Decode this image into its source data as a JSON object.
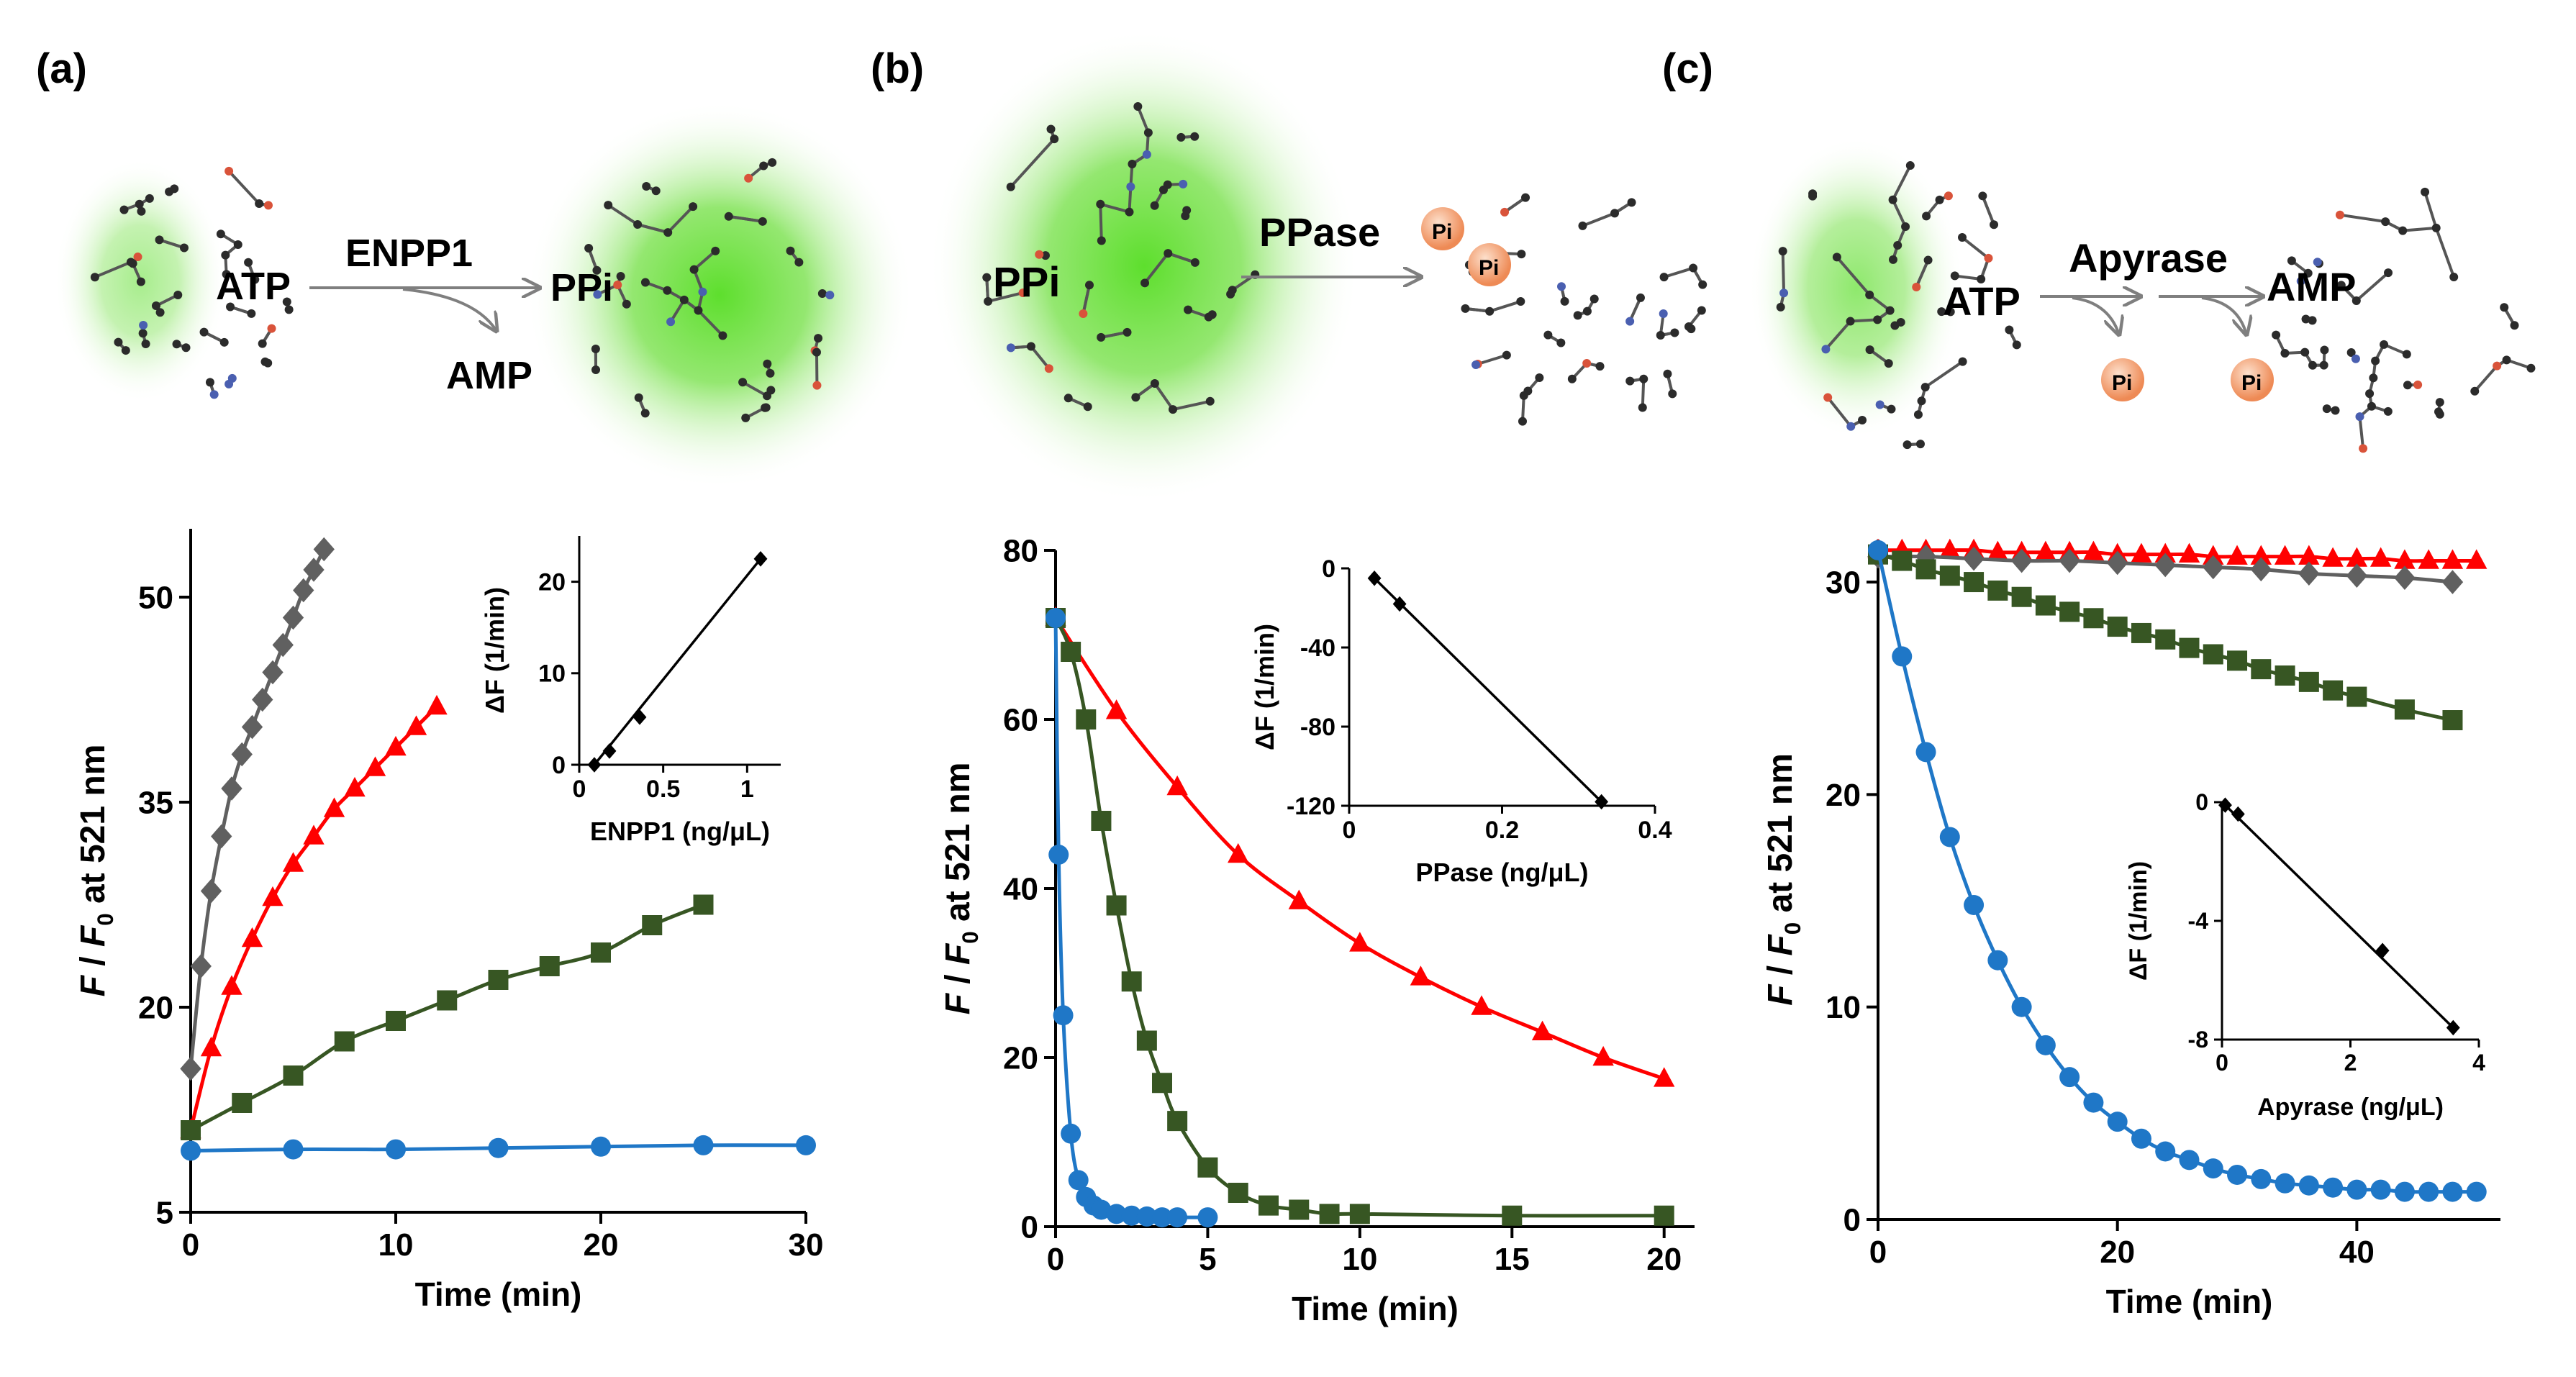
{
  "panels": [
    {
      "id": "a",
      "label": "(a)"
    },
    {
      "id": "b",
      "label": "(b)"
    },
    {
      "id": "c",
      "label": "(c)"
    }
  ],
  "schemes": {
    "a": {
      "substrate": "ATP",
      "enzyme": "ENPP1",
      "byproduct": "AMP",
      "product": "PPi"
    },
    "b": {
      "substrate": "PPi",
      "enzyme": "PPase",
      "byproduct": "Pi"
    },
    "c": {
      "substrate": "ATP",
      "enzyme": "Apyrase",
      "product": "AMP",
      "byproduct": "Pi"
    }
  },
  "colors": {
    "grey": "#606060",
    "red": "#ff0000",
    "green": "#375623",
    "blue": "#1f77c7",
    "glow": "#44cc11",
    "pi_ball": "#f4a070"
  },
  "chart_data": [
    {
      "id": "a-main",
      "type": "scatter",
      "xlabel": "Time (min)",
      "ylabel": "F / F0 at 521 nm",
      "xlim": [
        0,
        30
      ],
      "ylim": [
        5,
        55
      ],
      "xticks": [
        0,
        10,
        20,
        30
      ],
      "yticks": [
        5,
        20,
        35,
        50
      ],
      "series": [
        {
          "name": "grey",
          "marker": "diamond",
          "x": [
            0,
            0.5,
            1,
            1.5,
            2,
            2.5,
            3,
            3.5,
            4,
            4.5,
            5,
            5.5,
            6,
            6.5
          ],
          "y": [
            15.5,
            23,
            28.5,
            32.5,
            36,
            38.5,
            40.5,
            42.5,
            44.5,
            46.5,
            48.5,
            50.5,
            52,
            53.5
          ]
        },
        {
          "name": "red",
          "marker": "triangle",
          "x": [
            0,
            1,
            2,
            3,
            4,
            5,
            6,
            7,
            8,
            9,
            10,
            11,
            12
          ],
          "y": [
            11,
            17,
            21.5,
            25,
            28,
            30.5,
            32.5,
            34.5,
            36,
            37.5,
            39,
            40.5,
            42
          ]
        },
        {
          "name": "green",
          "marker": "square",
          "x": [
            0,
            2.5,
            5,
            7.5,
            10,
            12.5,
            15,
            17.5,
            20,
            22.5,
            25
          ],
          "y": [
            11,
            13,
            15,
            17.5,
            19,
            20.5,
            22,
            23,
            24,
            26,
            27.5
          ]
        },
        {
          "name": "blue",
          "marker": "circle",
          "x": [
            0,
            5,
            10,
            15,
            20,
            25,
            30
          ],
          "y": [
            9.5,
            9.6,
            9.6,
            9.7,
            9.8,
            9.9,
            9.9
          ]
        }
      ],
      "inset": {
        "xlabel": "ENPP1 (ng/μL)",
        "ylabel": "ΔF (1/min)",
        "xlim": [
          0,
          1.2
        ],
        "ylim": [
          0,
          25
        ],
        "xticks": [
          0,
          0.5,
          1
        ],
        "yticks": [
          0,
          10,
          20
        ],
        "x": [
          0.09,
          0.18,
          0.36,
          1.08
        ],
        "y": [
          0,
          1.5,
          5.2,
          22.5
        ]
      }
    },
    {
      "id": "b-main",
      "type": "scatter",
      "xlabel": "Time (min)",
      "ylabel": "F / F0 at 521 nm",
      "xlim": [
        0,
        21
      ],
      "ylim": [
        0,
        80
      ],
      "xticks": [
        0,
        5,
        10,
        15,
        20
      ],
      "yticks": [
        0,
        20,
        40,
        60,
        80
      ],
      "series": [
        {
          "name": "red",
          "marker": "triangle",
          "x": [
            0,
            2,
            4,
            6,
            8,
            10,
            12,
            14,
            16,
            18,
            20
          ],
          "y": [
            72,
            61,
            52,
            44,
            38.5,
            33.5,
            29.5,
            26,
            23,
            20,
            17.5
          ]
        },
        {
          "name": "green",
          "marker": "square",
          "x": [
            0,
            0.5,
            1,
            1.5,
            2,
            2.5,
            3,
            3.5,
            4,
            5,
            6,
            7,
            8,
            9,
            10,
            15,
            20
          ],
          "y": [
            72,
            68,
            60,
            48,
            38,
            29,
            22,
            17,
            12.5,
            7,
            4,
            2.5,
            2,
            1.5,
            1.5,
            1.3,
            1.3
          ]
        },
        {
          "name": "blue",
          "marker": "circle",
          "x": [
            0,
            0.1,
            0.25,
            0.5,
            0.75,
            1,
            1.25,
            1.5,
            2,
            2.5,
            3,
            3.5,
            4,
            5
          ],
          "y": [
            72,
            44,
            25,
            11,
            5.5,
            3.5,
            2.5,
            2,
            1.5,
            1.3,
            1.2,
            1.1,
            1.1,
            1.1
          ]
        }
      ],
      "inset": {
        "xlabel": "PPase (ng/μL)",
        "ylabel": "ΔF (1/min)",
        "xlim": [
          0,
          0.4
        ],
        "ylim": [
          -120,
          0
        ],
        "xticks": [
          0,
          0.2,
          0.4
        ],
        "yticks": [
          0,
          -40,
          -80,
          -120
        ],
        "x": [
          0.033,
          0.066,
          0.33
        ],
        "y": [
          -5,
          -18,
          -118
        ]
      }
    },
    {
      "id": "c-main",
      "type": "scatter",
      "xlabel": "Time (min)",
      "ylabel": "F / F0 at 521 nm",
      "xlim": [
        0,
        52
      ],
      "ylim": [
        0,
        32
      ],
      "xticks": [
        0,
        20,
        40
      ],
      "yticks": [
        0,
        10,
        20,
        30
      ],
      "series": [
        {
          "name": "red",
          "marker": "triangle",
          "x": [
            0,
            2,
            4,
            6,
            8,
            10,
            12,
            14,
            16,
            18,
            20,
            22,
            24,
            26,
            28,
            30,
            32,
            34,
            36,
            38,
            40,
            42,
            44,
            46,
            48,
            50
          ],
          "y": [
            31.5,
            31.5,
            31.5,
            31.5,
            31.5,
            31.4,
            31.4,
            31.4,
            31.4,
            31.4,
            31.3,
            31.3,
            31.3,
            31.3,
            31.2,
            31.2,
            31.2,
            31.2,
            31.2,
            31.1,
            31.1,
            31.1,
            31,
            31,
            31,
            31
          ]
        },
        {
          "name": "grey",
          "marker": "diamond",
          "x": [
            0,
            4,
            8,
            12,
            16,
            20,
            24,
            28,
            32,
            36,
            40,
            44,
            48
          ],
          "y": [
            31.2,
            31.2,
            31.1,
            31,
            31,
            30.9,
            30.8,
            30.7,
            30.6,
            30.4,
            30.3,
            30.2,
            30
          ]
        },
        {
          "name": "green",
          "marker": "square",
          "x": [
            0,
            2,
            4,
            6,
            8,
            10,
            12,
            14,
            16,
            18,
            20,
            22,
            24,
            26,
            28,
            30,
            32,
            34,
            36,
            38,
            40,
            44,
            48
          ],
          "y": [
            31.3,
            31,
            30.6,
            30.3,
            30,
            29.6,
            29.3,
            28.9,
            28.6,
            28.3,
            27.9,
            27.6,
            27.3,
            26.9,
            26.6,
            26.3,
            25.9,
            25.6,
            25.3,
            24.9,
            24.6,
            24,
            23.5
          ]
        },
        {
          "name": "blue",
          "marker": "circle",
          "x": [
            0,
            2,
            4,
            6,
            8,
            10,
            12,
            14,
            16,
            18,
            20,
            22,
            24,
            26,
            28,
            30,
            32,
            34,
            36,
            38,
            40,
            42,
            44,
            46,
            48,
            50
          ],
          "y": [
            31.5,
            26.5,
            22,
            18,
            14.8,
            12.2,
            10,
            8.2,
            6.7,
            5.5,
            4.6,
            3.8,
            3.2,
            2.8,
            2.4,
            2.1,
            1.9,
            1.7,
            1.6,
            1.5,
            1.4,
            1.4,
            1.3,
            1.3,
            1.3,
            1.3
          ]
        }
      ],
      "inset": {
        "xlabel": "Apyrase (ng/μL)",
        "ylabel": "ΔF (1/min)",
        "xlim": [
          0,
          4
        ],
        "ylim": [
          -8,
          0
        ],
        "xticks": [
          0,
          2,
          4
        ],
        "yticks": [
          0,
          -4,
          -8
        ],
        "x": [
          0.05,
          0.25,
          2.5,
          3.6
        ],
        "y": [
          -0.1,
          -0.4,
          -5,
          -7.6
        ]
      }
    }
  ]
}
